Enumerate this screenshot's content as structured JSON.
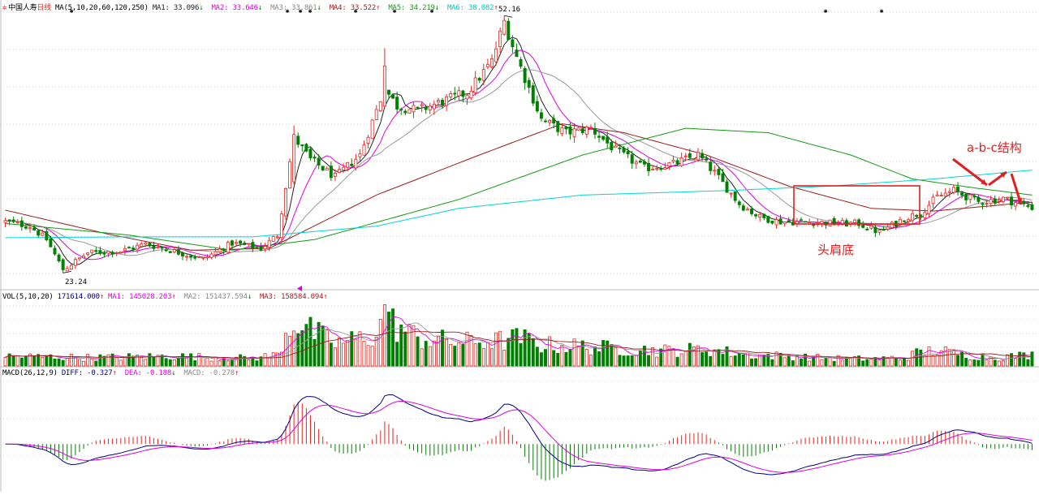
{
  "colors": {
    "up": "#e8251e",
    "down": "#008000",
    "ma1": "#222222",
    "ma2": "#e000e0",
    "ma3": "#999999",
    "ma4": "#9b1c1c",
    "ma5": "#159a15",
    "ma6": "#00d6d6",
    "grid": "#d6d6d6",
    "annotation": "#e02020",
    "diff": "#000080",
    "dea": "#e000e0"
  },
  "icons": {
    "stock": "gear-icon",
    "expand": "triangle-left-icon"
  },
  "price_header": {
    "name": "中国人寿",
    "period": "日线",
    "ma_params": "MA(5,10,20,60,120,250)",
    "items": [
      {
        "label": "MA1: 33.096",
        "arrow": "↓",
        "color": "#222222"
      },
      {
        "label": "MA2: 33.646",
        "arrow": "↓",
        "color": "#e000e0"
      },
      {
        "label": "MA3: 33.861",
        "arrow": "↓",
        "color": "#888888"
      },
      {
        "label": "MA4: 33.522",
        "arrow": "↑",
        "color": "#9b1c1c"
      },
      {
        "label": "MA5: 34.219",
        "arrow": "↓",
        "color": "#159a15"
      },
      {
        "label": "MA6: 38.082",
        "arrow": "↑",
        "color": "#00c8c8"
      }
    ]
  },
  "volume_header": {
    "params": "VOL(5,10,20)",
    "value": "171614.000",
    "value_arrow": "↑",
    "items": [
      {
        "label": "MA1: 145028.203",
        "arrow": "↑",
        "color": "#e000e0"
      },
      {
        "label": "MA2: 151437.594",
        "arrow": "↓",
        "color": "#888888"
      },
      {
        "label": "MA3: 158584.094",
        "arrow": "↑",
        "color": "#9b1c1c"
      }
    ]
  },
  "macd_header": {
    "params": "MACD(26,12,9)",
    "items": [
      {
        "label": "DIFF: -0.327",
        "arrow": "↑",
        "color": "#000080"
      },
      {
        "label": "DEA: -0.188",
        "arrow": "↓",
        "color": "#e000e0"
      },
      {
        "label": "MACD: -0.278",
        "arrow": "↑",
        "color": "#888888"
      }
    ]
  },
  "annotations": {
    "pattern_label": "头肩底",
    "abc_label": "a-b-c结构"
  },
  "chart_data": [
    {
      "type": "candlestick",
      "x_axis": "trading days (0 = leftmost visible bar)",
      "n_bars": 250,
      "ylim": [
        22,
        53
      ],
      "extremes": [
        {
          "label": "52.16",
          "index": 121,
          "value": 52.16
        },
        {
          "label": "23.24",
          "index": 14,
          "value": 23.24
        }
      ],
      "close_keypoints": [
        [
          0,
          29.0
        ],
        [
          6,
          28.5
        ],
        [
          10,
          27.0
        ],
        [
          14,
          23.6
        ],
        [
          20,
          25.5
        ],
        [
          28,
          25.7
        ],
        [
          34,
          26.5
        ],
        [
          40,
          25.8
        ],
        [
          48,
          24.8
        ],
        [
          55,
          26.6
        ],
        [
          62,
          26.0
        ],
        [
          66,
          27.5
        ],
        [
          70,
          38.5
        ],
        [
          74,
          36.0
        ],
        [
          80,
          34.0
        ],
        [
          86,
          36.5
        ],
        [
          92,
          44.0
        ],
        [
          95,
          42.0
        ],
        [
          100,
          41.5
        ],
        [
          106,
          42.5
        ],
        [
          112,
          43.5
        ],
        [
          118,
          47.0
        ],
        [
          121,
          51.5
        ],
        [
          124,
          47.5
        ],
        [
          130,
          40.5
        ],
        [
          136,
          39.0
        ],
        [
          142,
          39.5
        ],
        [
          148,
          37.0
        ],
        [
          155,
          35.0
        ],
        [
          162,
          35.5
        ],
        [
          168,
          36.5
        ],
        [
          172,
          34.5
        ],
        [
          178,
          31.0
        ],
        [
          183,
          29.5
        ],
        [
          188,
          29.0
        ],
        [
          195,
          29.0
        ],
        [
          202,
          28.8
        ],
        [
          207,
          28.8
        ],
        [
          212,
          27.8
        ],
        [
          218,
          29.4
        ],
        [
          222,
          30.0
        ],
        [
          226,
          31.8
        ],
        [
          230,
          32.5
        ],
        [
          236,
          31.2
        ],
        [
          242,
          31.6
        ],
        [
          249,
          30.6
        ]
      ],
      "moving_averages": [
        {
          "name": "MA1",
          "period": 5
        },
        {
          "name": "MA2",
          "period": 10
        },
        {
          "name": "MA3",
          "period": 20
        },
        {
          "name": "MA4",
          "period": 60,
          "keypoints": [
            [
              0,
              30.3
            ],
            [
              25,
              27.6
            ],
            [
              45,
              25.8
            ],
            [
              64,
              26.0
            ],
            [
              90,
              32.0
            ],
            [
              115,
              36.5
            ],
            [
              135,
              40.0
            ],
            [
              150,
              39.0
            ],
            [
              170,
              36.5
            ],
            [
              190,
              33.0
            ],
            [
              210,
              30.5
            ],
            [
              225,
              30.2
            ],
            [
              249,
              31.2
            ]
          ]
        },
        {
          "name": "MA5",
          "period": 120,
          "keypoints": [
            [
              0,
              28.8
            ],
            [
              30,
              27.5
            ],
            [
              55,
              25.8
            ],
            [
              75,
              27.0
            ],
            [
              110,
              31.5
            ],
            [
              140,
              36.5
            ],
            [
              165,
              39.5
            ],
            [
              185,
              39.0
            ],
            [
              205,
              36.5
            ],
            [
              220,
              33.8
            ],
            [
              235,
              32.8
            ],
            [
              249,
              32.0
            ]
          ]
        },
        {
          "name": "MA6",
          "period": 250,
          "keypoints": [
            [
              0,
              27.2
            ],
            [
              30,
              27.3
            ],
            [
              60,
              27.3
            ],
            [
              90,
              28.5
            ],
            [
              110,
              30.5
            ],
            [
              140,
              32.0
            ],
            [
              175,
              32.5
            ],
            [
              200,
              33.0
            ],
            [
              225,
              33.8
            ],
            [
              249,
              34.8
            ]
          ]
        }
      ]
    },
    {
      "type": "bar",
      "title": "VOL(5,10,20)",
      "unit": "lots",
      "ylim": [
        0,
        460000
      ],
      "volume_keypoints": [
        [
          0,
          70000
        ],
        [
          20,
          60000
        ],
        [
          40,
          70000
        ],
        [
          60,
          55000
        ],
        [
          66,
          80000
        ],
        [
          68,
          240000
        ],
        [
          70,
          330000
        ],
        [
          74,
          250000
        ],
        [
          80,
          160000
        ],
        [
          90,
          220000
        ],
        [
          92,
          340000
        ],
        [
          100,
          200000
        ],
        [
          110,
          170000
        ],
        [
          120,
          180000
        ],
        [
          125,
          200000
        ],
        [
          130,
          150000
        ],
        [
          140,
          140000
        ],
        [
          150,
          120000
        ],
        [
          160,
          110000
        ],
        [
          170,
          120000
        ],
        [
          180,
          80000
        ],
        [
          190,
          70000
        ],
        [
          200,
          55000
        ],
        [
          210,
          50000
        ],
        [
          218,
          60000
        ],
        [
          222,
          100000
        ],
        [
          226,
          110000
        ],
        [
          232,
          80000
        ],
        [
          240,
          60000
        ],
        [
          249,
          80000
        ]
      ]
    },
    {
      "type": "bar+line",
      "title": "MACD(26,12,9)",
      "series": [
        {
          "name": "DIFF",
          "last": -0.327
        },
        {
          "name": "DEA",
          "last": -0.188
        },
        {
          "name": "MACD",
          "last": -0.278
        }
      ],
      "ylim": [
        -2.8,
        4.2
      ]
    }
  ]
}
